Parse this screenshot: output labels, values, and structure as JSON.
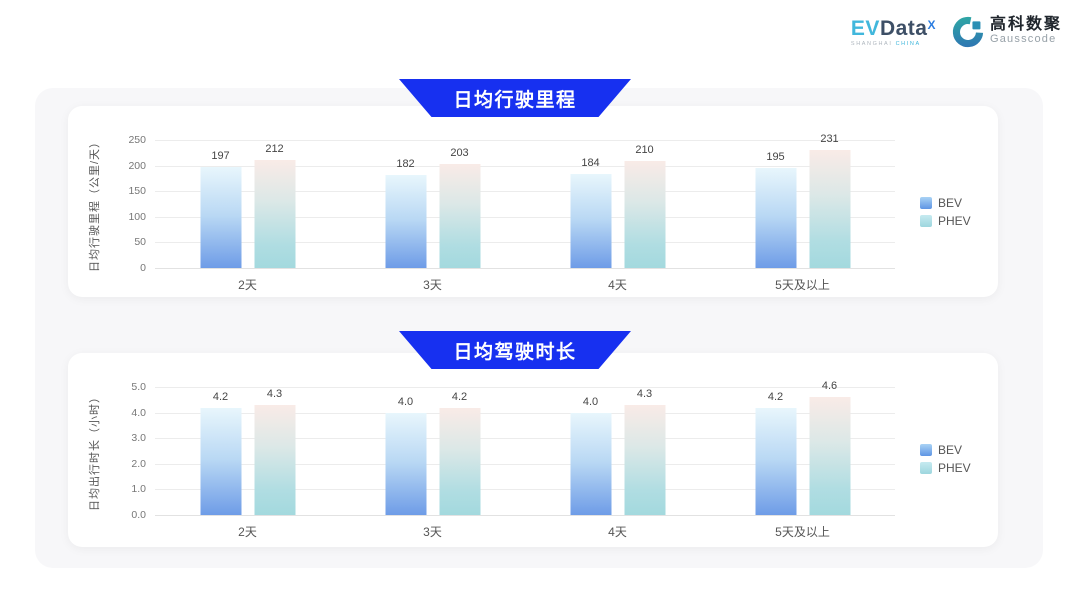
{
  "logo": {
    "evdata_ev": "EV",
    "evdata_data": "Data",
    "evdata_sup": "X",
    "evdata_sub_shanghai": "SHANGHAI",
    "evdata_sub_china": "CHINA",
    "gausscode_cn": "高科数聚",
    "gausscode_en": "Gausscode"
  },
  "colors": {
    "banner_blue": "#1730f0",
    "bev_gradient_top": "#e8f6fc",
    "bev_gradient_bottom": "#6e9ce7",
    "phev_gradient_top": "#f9ebe7",
    "phev_gradient_bottom": "#a3d9de",
    "panel_bg": "#f7f7f9"
  },
  "chart_data": [
    {
      "type": "bar",
      "title": "日均行驶里程",
      "ylabel": "日均行驶里程（公里/天）",
      "xlabel": "",
      "categories": [
        "2天",
        "3天",
        "4天",
        "5天及以上"
      ],
      "series": [
        {
          "name": "BEV",
          "values": [
            197,
            182,
            184,
            195
          ],
          "labels": [
            "197",
            "182",
            "184",
            "195"
          ]
        },
        {
          "name": "PHEV",
          "values": [
            212,
            203,
            210,
            231
          ],
          "labels": [
            "212",
            "203",
            "210",
            "231"
          ]
        }
      ],
      "ylim": [
        0,
        250
      ],
      "yticks": [
        "250",
        "200",
        "150",
        "100",
        "50",
        "0"
      ],
      "grid": true,
      "legend_position": "right"
    },
    {
      "type": "bar",
      "title": "日均驾驶时长",
      "ylabel": "日均出行时长（小时）",
      "xlabel": "",
      "categories": [
        "2天",
        "3天",
        "4天",
        "5天及以上"
      ],
      "series": [
        {
          "name": "BEV",
          "values": [
            4.2,
            4.0,
            4.0,
            4.2
          ],
          "labels": [
            "4.2",
            "4.0",
            "4.0",
            "4.2"
          ]
        },
        {
          "name": "PHEV",
          "values": [
            4.3,
            4.2,
            4.3,
            4.6
          ],
          "labels": [
            "4.3",
            "4.2",
            "4.3",
            "4.6"
          ]
        }
      ],
      "ylim": [
        0,
        5
      ],
      "yticks": [
        "5.0",
        "4.0",
        "3.0",
        "2.0",
        "1.0",
        "0.0"
      ],
      "grid": true,
      "legend_position": "right"
    }
  ]
}
